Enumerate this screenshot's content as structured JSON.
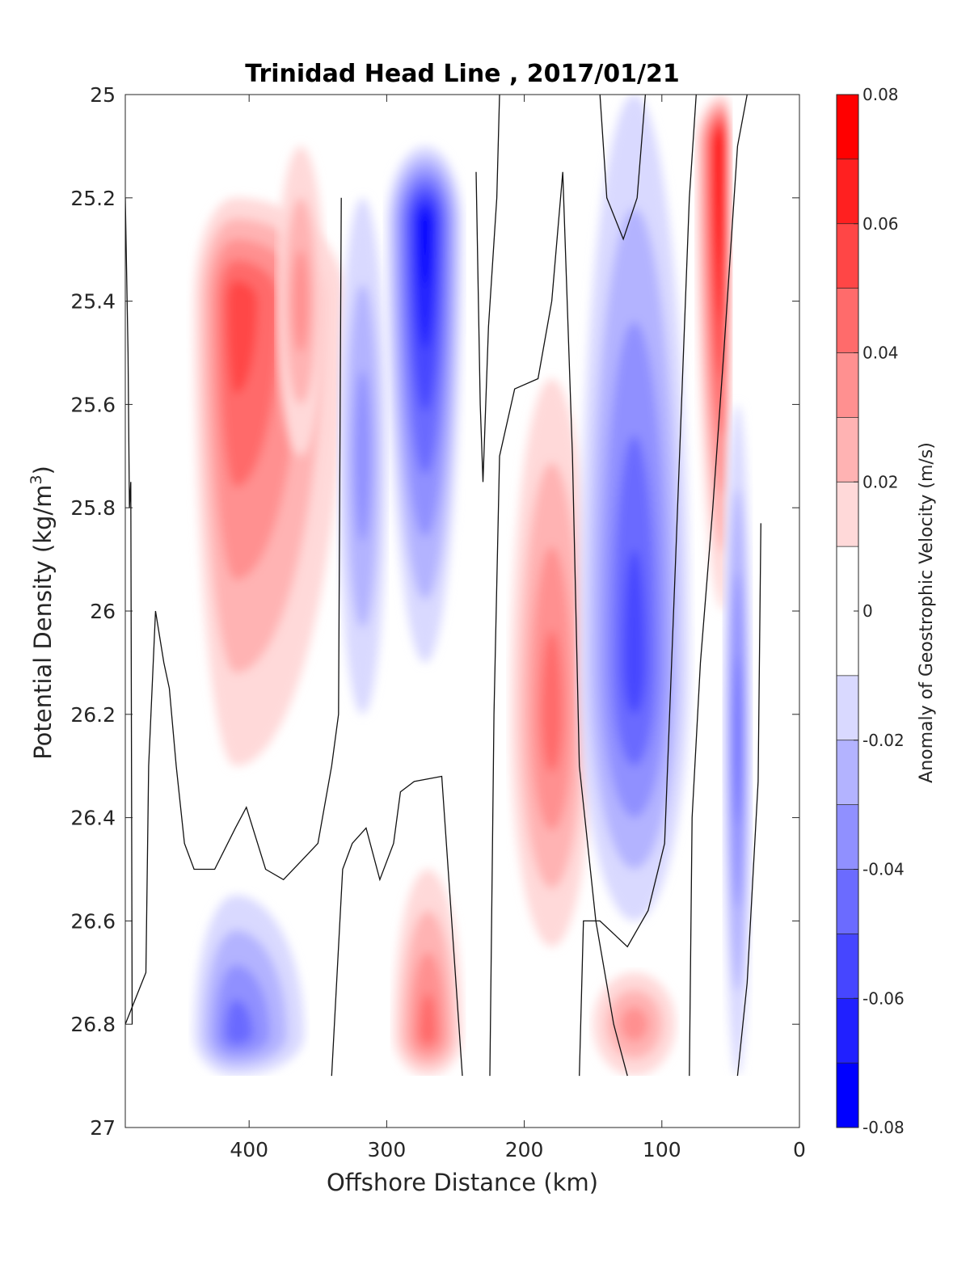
{
  "chart_data": {
    "type": "contour",
    "title": "Trinidad Head Line , 2017/01/21",
    "xlabel": "Offshore Distance (km)",
    "ylabel_main": "Potential Density (kg/m",
    "ylabel_sup": "3",
    "ylabel_end": ")",
    "xlim": [
      490,
      0
    ],
    "x_reversed": true,
    "ylim": [
      25,
      27
    ],
    "y_reversed": true,
    "xticks": [
      "400",
      "300",
      "200",
      "100",
      "0"
    ],
    "xtick_values": [
      400,
      300,
      200,
      100,
      0
    ],
    "yticks": [
      "25",
      "25.2",
      "25.4",
      "25.6",
      "25.8",
      "26",
      "26.2",
      "26.4",
      "26.6",
      "26.8",
      "27"
    ],
    "ytick_values": [
      25,
      25.2,
      25.4,
      25.6,
      25.8,
      26,
      26.2,
      26.4,
      26.6,
      26.8,
      27
    ],
    "colorbar": {
      "label": "Anomaly of Geostrophic Velocity (m/s)",
      "limits": [
        -0.08,
        0.08
      ],
      "tick_labels": [
        "0.08",
        "0.06",
        "0.04",
        "0.02",
        "0",
        "-0.02",
        "-0.04",
        "-0.06",
        "-0.08"
      ],
      "tick_values": [
        0.08,
        0.06,
        0.04,
        0.02,
        0,
        -0.02,
        -0.04,
        -0.06,
        -0.08
      ],
      "levels": [
        -0.08,
        -0.07,
        -0.06,
        -0.05,
        -0.04,
        -0.03,
        -0.02,
        -0.01,
        0.01,
        0.02,
        0.03,
        0.04,
        0.05,
        0.06,
        0.07,
        0.08
      ],
      "colors": [
        "#0000ff",
        "#2020ff",
        "#4646ff",
        "#6b6bff",
        "#9090ff",
        "#b3b3ff",
        "#d9d9ff",
        "#ffffff",
        "#ffd9d9",
        "#ffb3b3",
        "#ff9090",
        "#ff6b6b",
        "#ff4646",
        "#ff2020",
        "#ff0000"
      ]
    },
    "data_extent": {
      "density_min": 25.0,
      "density_max": 26.9
    },
    "features": [
      {
        "name": "offshore positive core",
        "x": [
          330,
          440
        ],
        "density": [
          25.2,
          26.3
        ],
        "peak": 0.05,
        "center_x": 410,
        "center_density": 25.4
      },
      {
        "name": "positive lobe 360 km",
        "x": [
          345,
          380
        ],
        "density": [
          25.1,
          25.7
        ],
        "peak": 0.03
      },
      {
        "name": "negative core 270 km",
        "x": [
          245,
          300
        ],
        "density": [
          25.1,
          26.1
        ],
        "peak": -0.07,
        "center_x": 272,
        "center_density": 25.25
      },
      {
        "name": "negative band 320 km",
        "x": [
          300,
          335
        ],
        "density": [
          25.2,
          26.2
        ],
        "peak": -0.03
      },
      {
        "name": "positive core 180 km",
        "x": [
          150,
          210
        ],
        "density": [
          25.55,
          26.65
        ],
        "peak": 0.04,
        "center_x": 180,
        "center_density": 26.2
      },
      {
        "name": "negative core 120 km",
        "x": [
          80,
          160
        ],
        "density": [
          25.0,
          26.6
        ],
        "peak": -0.05,
        "center_x": 120,
        "center_density": 26.1
      },
      {
        "name": "coastal positive jet",
        "x": [
          50,
          75
        ],
        "density": [
          25.0,
          26.0
        ],
        "peak": 0.08,
        "center_x": 55,
        "center_density": 25.1
      },
      {
        "name": "nearshore negative band",
        "x": [
          35,
          55
        ],
        "density": [
          25.6,
          26.9
        ],
        "peak": -0.04
      },
      {
        "name": "deep negative 410 km",
        "x": [
          360,
          440
        ],
        "density": [
          26.55,
          26.9
        ],
        "peak": -0.04,
        "center_x": 410,
        "center_density": 26.82
      },
      {
        "name": "deep positive 270 km",
        "x": [
          245,
          295
        ],
        "density": [
          26.5,
          26.9
        ],
        "peak": 0.04,
        "center_x": 270,
        "center_density": 26.82
      },
      {
        "name": "deep positive 110 km",
        "x": [
          90,
          150
        ],
        "density": [
          26.7,
          26.9
        ],
        "peak": 0.03
      }
    ]
  }
}
